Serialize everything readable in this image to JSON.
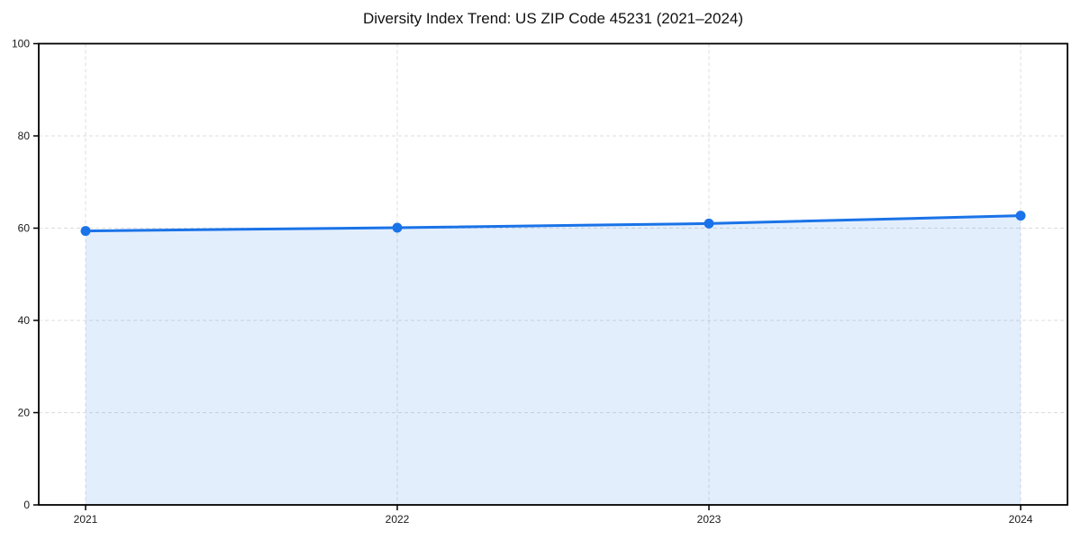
{
  "page": {
    "background": "#ffffff"
  },
  "chart_data": {
    "type": "area",
    "title": "Diversity Index Trend: US ZIP Code 45231 (2021–2024)",
    "categories": [
      "2021",
      "2022",
      "2023",
      "2024"
    ],
    "values": [
      59.4,
      60.1,
      61.0,
      62.7
    ],
    "xlabel": "",
    "ylabel": "",
    "ylim": [
      0,
      100
    ],
    "yticks": [
      0,
      20,
      40,
      60,
      80,
      100
    ],
    "grid": true,
    "grid_style": "dashed",
    "legend": "none",
    "marker": "circle",
    "colors": {
      "line": "#1a73e8",
      "fill": "#1a73e8",
      "fill_opacity": 0.12,
      "grid": "#dcdcdc",
      "axis": "#000000",
      "tick_text": "#1a1a1a",
      "title_text": "#111111",
      "background": "#ffffff"
    }
  }
}
